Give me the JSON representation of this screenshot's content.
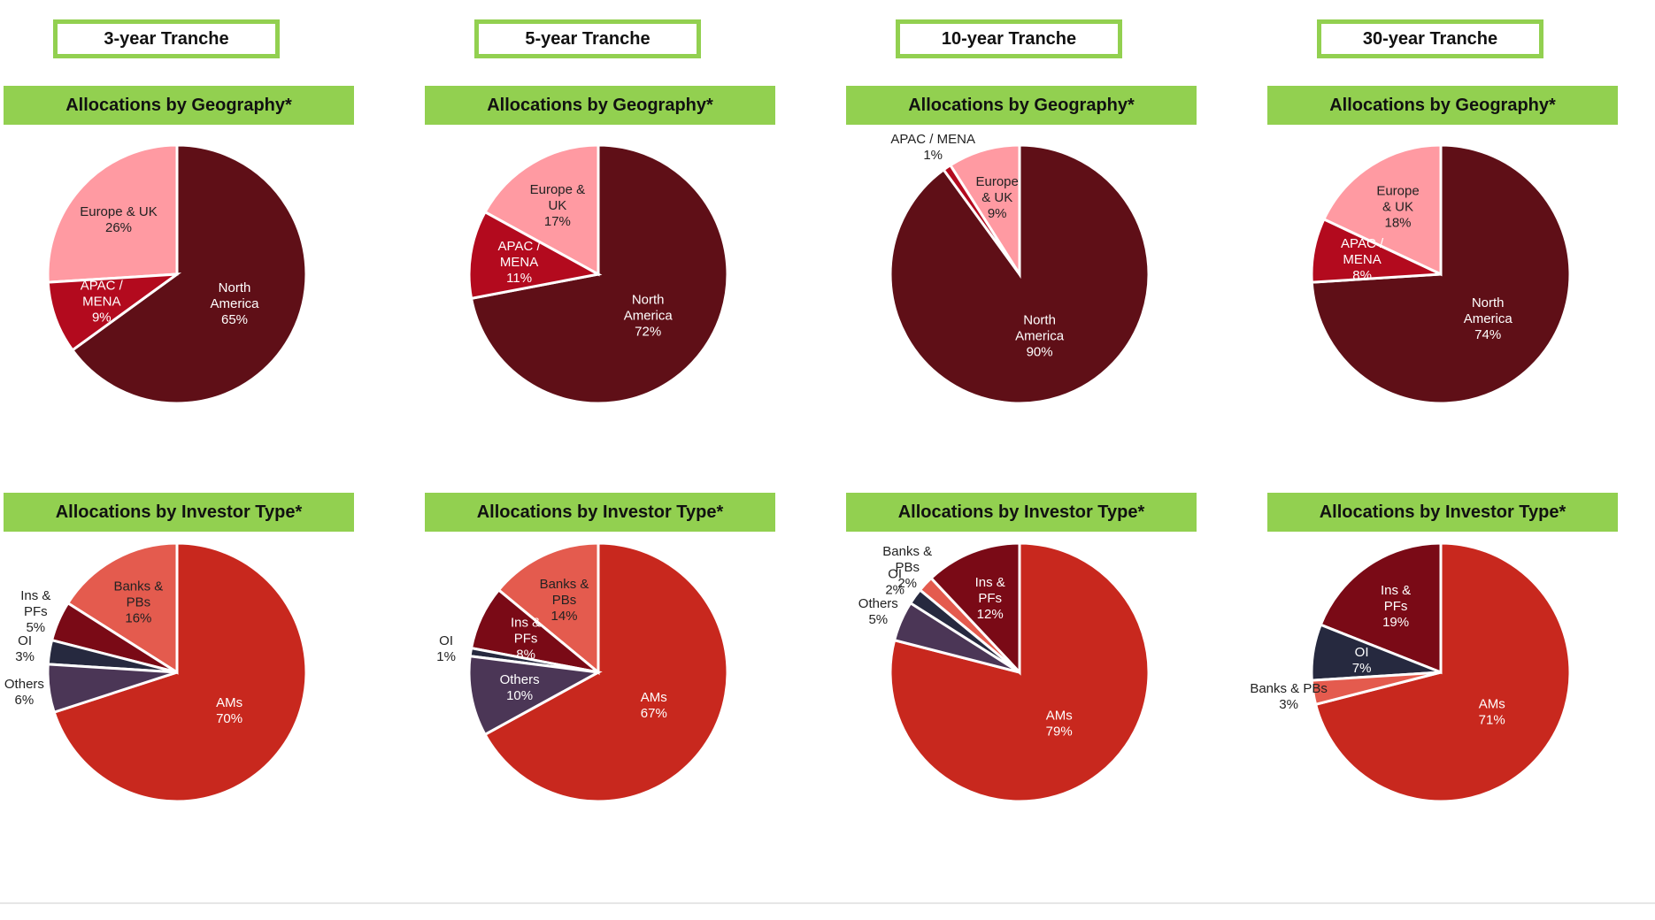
{
  "colors": {
    "accent_green": "#92d050",
    "north_america": "#5f0f17",
    "europe_uk": "#ff9aa2",
    "apac_mena": "#b30a1e",
    "ams": "#c8281e",
    "banks_pbs": "#e45b4e",
    "ins_pfs": "#7a0a16",
    "oi": "#26293f",
    "others": "#4b3656"
  },
  "chart_data": [
    {
      "type": "pie",
      "tranche": "3-year Tranche",
      "title": "Allocations by Geography*",
      "slices": [
        {
          "label": "North America",
          "lines": [
            "North",
            "America"
          ],
          "value": 65,
          "pct": "65%",
          "color": "#5f0f17",
          "text_color": "#ffffff"
        },
        {
          "label": "Europe & UK",
          "lines": [
            "Europe & UK"
          ],
          "value": 26,
          "pct": "26%",
          "color": "#ff9aa2",
          "text_color": "#222222"
        },
        {
          "label": "APAC / MENA",
          "lines": [
            "APAC /",
            "MENA"
          ],
          "value": 9,
          "pct": "9%",
          "color": "#b30a1e",
          "text_color": "#ffffff"
        }
      ]
    },
    {
      "type": "pie",
      "tranche": "3-year Tranche",
      "title": "Allocations by Investor Type*",
      "slices": [
        {
          "label": "AMs",
          "lines": [
            "AMs"
          ],
          "value": 70,
          "pct": "70%",
          "color": "#c8281e",
          "text_color": "#ffffff"
        },
        {
          "label": "Banks & PBs",
          "lines": [
            "Banks &",
            "PBs"
          ],
          "value": 16,
          "pct": "16%",
          "color": "#e45b4e",
          "text_color": "#222222"
        },
        {
          "label": "Ins & PFs",
          "lines": [
            "Ins &",
            "PFs"
          ],
          "value": 5,
          "pct": "5%",
          "color": "#7a0a16",
          "text_color": "#222222",
          "outside": true
        },
        {
          "label": "OI",
          "lines": [
            "OI"
          ],
          "value": 3,
          "pct": "3%",
          "color": "#26293f",
          "text_color": "#222222",
          "outside": true
        },
        {
          "label": "Others",
          "lines": [
            "Others"
          ],
          "value": 6,
          "pct": "6%",
          "color": "#4b3656",
          "text_color": "#222222",
          "outside": true
        }
      ]
    },
    {
      "type": "pie",
      "tranche": "5-year Tranche",
      "title": "Allocations by Geography*",
      "slices": [
        {
          "label": "North America",
          "lines": [
            "North",
            "America"
          ],
          "value": 72,
          "pct": "72%",
          "color": "#5f0f17",
          "text_color": "#ffffff"
        },
        {
          "label": "Europe & UK",
          "lines": [
            "Europe &",
            "UK"
          ],
          "value": 17,
          "pct": "17%",
          "color": "#ff9aa2",
          "text_color": "#222222"
        },
        {
          "label": "APAC / MENA",
          "lines": [
            "APAC /",
            "MENA"
          ],
          "value": 11,
          "pct": "11%",
          "color": "#b30a1e",
          "text_color": "#ffffff"
        }
      ]
    },
    {
      "type": "pie",
      "tranche": "5-year Tranche",
      "title": "Allocations by Investor Type*",
      "slices": [
        {
          "label": "AMs",
          "lines": [
            "AMs"
          ],
          "value": 67,
          "pct": "67%",
          "color": "#c8281e",
          "text_color": "#ffffff"
        },
        {
          "label": "Banks & PBs",
          "lines": [
            "Banks &",
            "PBs"
          ],
          "value": 14,
          "pct": "14%",
          "color": "#e45b4e",
          "text_color": "#222222"
        },
        {
          "label": "Ins & PFs",
          "lines": [
            "Ins &",
            "PFs"
          ],
          "value": 8,
          "pct": "8%",
          "color": "#7a0a16",
          "text_color": "#ffffff"
        },
        {
          "label": "OI",
          "lines": [
            "OI"
          ],
          "value": 1,
          "pct": "1%",
          "color": "#26293f",
          "text_color": "#222222",
          "outside": true
        },
        {
          "label": "Others",
          "lines": [
            "Others"
          ],
          "value": 10,
          "pct": "10%",
          "color": "#4b3656",
          "text_color": "#ffffff"
        }
      ]
    },
    {
      "type": "pie",
      "tranche": "10-year Tranche",
      "title": "Allocations by Geography*",
      "slices": [
        {
          "label": "North America",
          "lines": [
            "North",
            "America"
          ],
          "value": 90,
          "pct": "90%",
          "color": "#5f0f17",
          "text_color": "#ffffff"
        },
        {
          "label": "Europe & UK",
          "lines": [
            "Europe",
            "& UK"
          ],
          "value": 9,
          "pct": "9%",
          "color": "#ff9aa2",
          "text_color": "#222222"
        },
        {
          "label": "APAC / MENA",
          "lines": [
            "APAC / MENA"
          ],
          "value": 1,
          "pct": "1%",
          "color": "#b30a1e",
          "text_color": "#222222",
          "outside": true
        }
      ]
    },
    {
      "type": "pie",
      "tranche": "10-year Tranche",
      "title": "Allocations by Investor Type*",
      "slices": [
        {
          "label": "AMs",
          "lines": [
            "AMs"
          ],
          "value": 79,
          "pct": "79%",
          "color": "#c8281e",
          "text_color": "#ffffff"
        },
        {
          "label": "Ins & PFs",
          "lines": [
            "Ins &",
            "PFs"
          ],
          "value": 12,
          "pct": "12%",
          "color": "#7a0a16",
          "text_color": "#ffffff"
        },
        {
          "label": "Banks & PBs",
          "lines": [
            "Banks &",
            "PBs"
          ],
          "value": 2,
          "pct": "2%",
          "color": "#e45b4e",
          "text_color": "#222222",
          "outside": true
        },
        {
          "label": "OI",
          "lines": [
            "OI"
          ],
          "value": 2,
          "pct": "2%",
          "color": "#26293f",
          "text_color": "#222222",
          "outside": true
        },
        {
          "label": "Others",
          "lines": [
            "Others"
          ],
          "value": 5,
          "pct": "5%",
          "color": "#4b3656",
          "text_color": "#222222",
          "outside": true
        }
      ]
    },
    {
      "type": "pie",
      "tranche": "30-year Tranche",
      "title": "Allocations by Geography*",
      "slices": [
        {
          "label": "North America",
          "lines": [
            "North",
            "America"
          ],
          "value": 74,
          "pct": "74%",
          "color": "#5f0f17",
          "text_color": "#ffffff"
        },
        {
          "label": "Europe & UK",
          "lines": [
            "Europe",
            "& UK"
          ],
          "value": 18,
          "pct": "18%",
          "color": "#ff9aa2",
          "text_color": "#222222"
        },
        {
          "label": "APAC / MENA",
          "lines": [
            "APAC /",
            "MENA"
          ],
          "value": 8,
          "pct": "8%",
          "color": "#b30a1e",
          "text_color": "#ffffff"
        }
      ]
    },
    {
      "type": "pie",
      "tranche": "30-year Tranche",
      "title": "Allocations by Investor Type*",
      "slices": [
        {
          "label": "AMs",
          "lines": [
            "AMs"
          ],
          "value": 71,
          "pct": "71%",
          "color": "#c8281e",
          "text_color": "#ffffff"
        },
        {
          "label": "Ins & PFs",
          "lines": [
            "Ins &",
            "PFs"
          ],
          "value": 19,
          "pct": "19%",
          "color": "#7a0a16",
          "text_color": "#ffffff"
        },
        {
          "label": "OI",
          "lines": [
            "OI"
          ],
          "value": 7,
          "pct": "7%",
          "color": "#26293f",
          "text_color": "#ffffff"
        },
        {
          "label": "Banks & PBs",
          "lines": [
            "Banks & PBs"
          ],
          "value": 3,
          "pct": "3%",
          "color": "#e45b4e",
          "text_color": "#222222",
          "outside": true
        }
      ]
    }
  ]
}
